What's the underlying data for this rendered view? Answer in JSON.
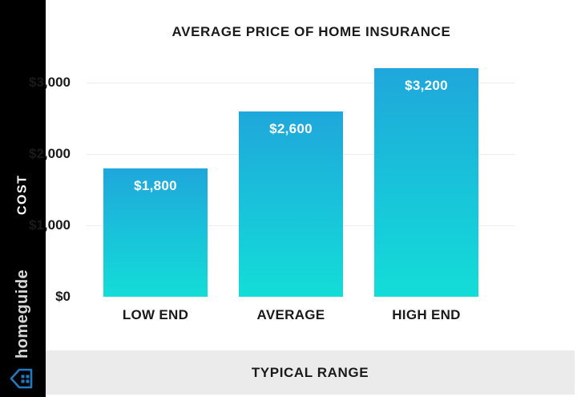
{
  "sidebar": {
    "brand_name": "homeguide",
    "brand_icon": "house-icon"
  },
  "chart_data": {
    "type": "bar",
    "title": "AVERAGE PRICE OF HOME INSURANCE",
    "categories": [
      "LOW END",
      "AVERAGE",
      "HIGH END"
    ],
    "values": [
      1800,
      2600,
      3200
    ],
    "value_labels": [
      "$1,800",
      "$2,600",
      "$3,200"
    ],
    "ylabel": "COST",
    "xlabel": "TYPICAL RANGE",
    "ylim": [
      0,
      3200
    ],
    "yticks": [
      {
        "value": 0,
        "label": "$0"
      },
      {
        "value": 1000,
        "label": "$1,000"
      },
      {
        "value": 2000,
        "label": "$2,000"
      },
      {
        "value": 3000,
        "label": "$3,000"
      }
    ],
    "grid": "horizontal",
    "legend": false
  },
  "colors": {
    "sidebar_bg": "#000000",
    "footer_bg": "#ebebeb",
    "grid": "#ededed",
    "text": "#1a1a1a",
    "value_text": "#ffffff",
    "bar_top": "#1fa7db",
    "bar_bottom": "#13ddd8",
    "brand_blue": "#2478bd",
    "brand_text": "#d6d6d6"
  }
}
